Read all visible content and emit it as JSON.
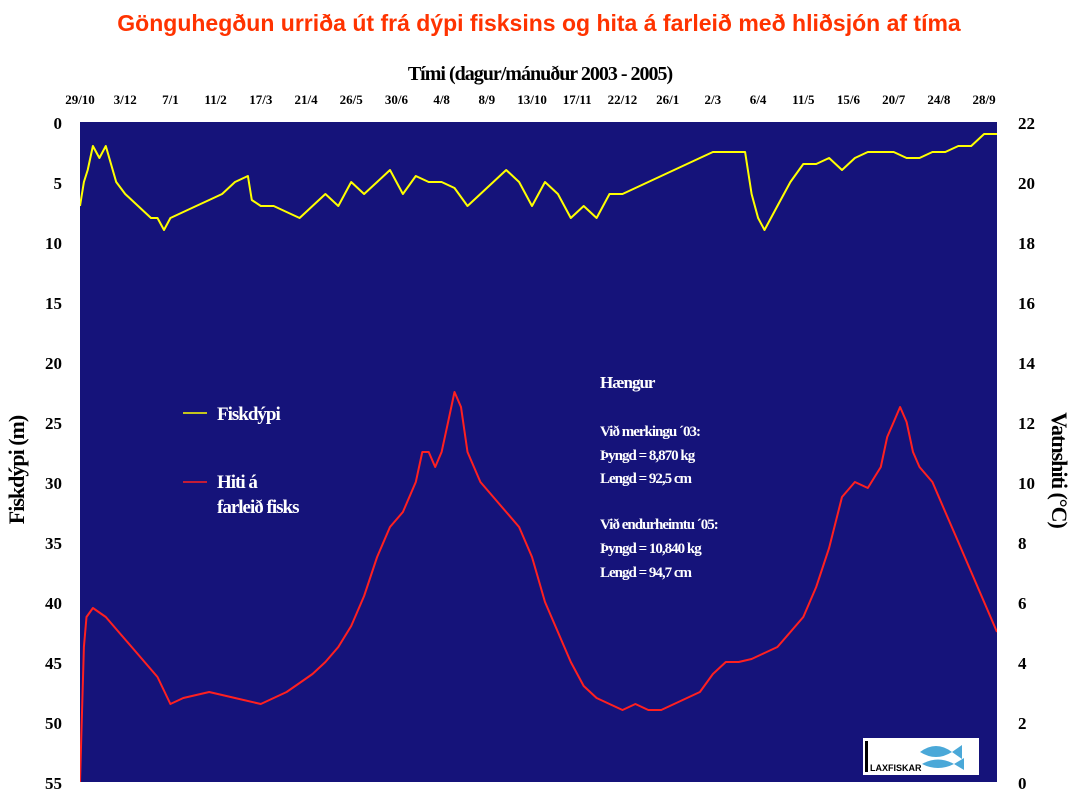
{
  "page_title": "Gönguhegðun urriða út frá dýpi fisksins og hita á farleið með hliðsjón af tíma",
  "chart_data": {
    "type": "line",
    "title": "Gönguhegðun urriða út frá dýpi fisksins og hita á farleið með hliðsjón af tíma",
    "xlabel": "Tími (dagur/mánuður 2003 - 2005)",
    "ylabel": "Fiskdýpi (m)",
    "y2label": "Vatnshiti (°C)",
    "x_ticks": [
      "29/10",
      "3/12",
      "7/1",
      "11/2",
      "17/3",
      "21/4",
      "26/5",
      "30/6",
      "4/8",
      "8/9",
      "13/10",
      "17/11",
      "22/12",
      "26/1",
      "2/3",
      "6/4",
      "11/5",
      "15/6",
      "20/7",
      "24/8",
      "28/9"
    ],
    "x_tick_days": [
      0,
      35,
      70,
      105,
      140,
      175,
      210,
      245,
      280,
      315,
      350,
      385,
      420,
      455,
      490,
      525,
      560,
      595,
      630,
      665,
      700
    ],
    "xlim": [
      0,
      710
    ],
    "ylim": [
      0,
      55
    ],
    "y_reversed": true,
    "y_ticks": [
      0,
      5,
      10,
      15,
      20,
      25,
      30,
      35,
      40,
      45,
      50,
      55
    ],
    "y2lim": [
      0,
      22
    ],
    "y2_ticks": [
      0,
      2,
      4,
      6,
      8,
      10,
      12,
      14,
      16,
      18,
      20,
      22
    ],
    "grid": false,
    "legend_position": "left-middle",
    "series": [
      {
        "name": "Fiskdýpi",
        "axis": "left",
        "color": "#ffff00",
        "x": [
          0,
          3,
          6,
          10,
          15,
          20,
          28,
          35,
          45,
          55,
          60,
          65,
          70,
          80,
          90,
          100,
          110,
          120,
          130,
          133,
          140,
          150,
          160,
          170,
          180,
          190,
          200,
          210,
          220,
          230,
          240,
          250,
          260,
          270,
          280,
          290,
          300,
          310,
          320,
          330,
          340,
          350,
          360,
          370,
          380,
          390,
          400,
          410,
          420,
          430,
          440,
          450,
          460,
          470,
          480,
          490,
          500,
          515,
          520,
          525,
          530,
          540,
          550,
          560,
          570,
          580,
          590,
          600,
          610,
          620,
          630,
          640,
          650,
          660,
          670,
          680,
          690,
          700,
          710
        ],
        "values": [
          7,
          5,
          4,
          2,
          3,
          2,
          5,
          6,
          7,
          8,
          8,
          9,
          8,
          7.5,
          7,
          6.5,
          6,
          5,
          4.5,
          6.5,
          7,
          7,
          7.5,
          8,
          7,
          6,
          7,
          5,
          6,
          5,
          4,
          6,
          4.5,
          5,
          5,
          5.5,
          7,
          6,
          5,
          4,
          5,
          7,
          5,
          6,
          8,
          7,
          8,
          6,
          6,
          5.5,
          5,
          4.5,
          4,
          3.5,
          3,
          2.5,
          2.5,
          2.5,
          6,
          8,
          9,
          7,
          5,
          3.5,
          3.5,
          3,
          4,
          3,
          2.5,
          2.5,
          2.5,
          3,
          3,
          2.5,
          2.5,
          2,
          2,
          1,
          1
        ]
      },
      {
        "name": "Hiti á farleið fisks",
        "axis": "right",
        "color": "#ff2020",
        "x": [
          0,
          3,
          5,
          10,
          20,
          30,
          40,
          50,
          60,
          70,
          80,
          100,
          120,
          140,
          150,
          160,
          170,
          180,
          190,
          200,
          210,
          220,
          230,
          240,
          250,
          260,
          265,
          270,
          275,
          280,
          285,
          290,
          295,
          300,
          310,
          320,
          330,
          340,
          350,
          360,
          370,
          380,
          390,
          400,
          410,
          420,
          430,
          440,
          450,
          460,
          470,
          480,
          490,
          500,
          510,
          520,
          530,
          540,
          550,
          560,
          570,
          580,
          590,
          600,
          610,
          620,
          625,
          630,
          635,
          640,
          645,
          650,
          660,
          670,
          680,
          690,
          700,
          710
        ],
        "values": [
          0,
          4.5,
          5.5,
          5.8,
          5.5,
          5,
          4.5,
          4,
          3.5,
          2.6,
          2.8,
          3,
          2.8,
          2.6,
          2.8,
          3,
          3.3,
          3.6,
          4,
          4.5,
          5.2,
          6.2,
          7.5,
          8.5,
          9,
          10,
          11,
          11,
          10.5,
          11,
          12,
          13,
          12.5,
          11,
          10,
          9.5,
          9,
          8.5,
          7.5,
          6,
          5,
          4,
          3.2,
          2.8,
          2.6,
          2.4,
          2.6,
          2.4,
          2.4,
          2.6,
          2.8,
          3,
          3.6,
          4,
          4,
          4.1,
          4.3,
          4.5,
          5,
          5.5,
          6.5,
          7.8,
          9.5,
          10,
          9.8,
          10.5,
          11.5,
          12,
          12.5,
          12,
          11,
          10.5,
          10,
          9,
          8,
          7,
          6,
          5
        ]
      }
    ]
  },
  "legend": {
    "items": [
      {
        "label": "Fiskdýpi",
        "color": "#ffff00"
      },
      {
        "label_line1": "Hiti á",
        "label_line2": "farleið fisks",
        "color": "#ff2020"
      }
    ]
  },
  "info_box": {
    "title": "Hængur",
    "lines": [
      "Við merkingu ´03:",
      "Þyngd = 8,870 kg",
      "Lengd = 92,5 cm",
      "",
      "Við endurheimtu ´05:",
      "Þyngd = 10,840 kg",
      "Lengd = 94,7 cm"
    ]
  },
  "logo": {
    "text": "LAXFISKAR"
  },
  "colors": {
    "plot_bg": "#15137a",
    "title": "#ff3300",
    "depth_line": "#ffff00",
    "temp_line": "#ff2020"
  }
}
